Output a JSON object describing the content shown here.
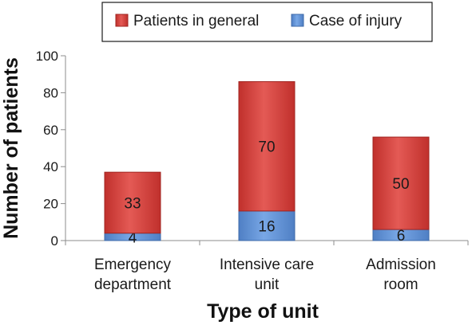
{
  "chart_data": {
    "type": "bar",
    "stacked": true,
    "categories": [
      [
        "Emergency",
        "department"
      ],
      [
        "Intensive care",
        "unit"
      ],
      [
        "Admission",
        "room"
      ]
    ],
    "series": [
      {
        "name": "Case of injury",
        "values": [
          4,
          16,
          6
        ],
        "color": "#4f7fc4",
        "highlight": "#78a7e6",
        "edge": "#3e6aa8"
      },
      {
        "name": "Patients in general",
        "values": [
          33,
          70,
          50
        ],
        "color": "#c0302c",
        "highlight": "#e45a55",
        "edge": "#a12521"
      }
    ],
    "legend_order": [
      "Patients in general",
      "Case of injury"
    ],
    "xlabel": "Type of unit",
    "ylabel": "Number of patients",
    "ylim": [
      0,
      100
    ],
    "yticks": [
      0,
      20,
      40,
      60,
      80,
      100
    ],
    "grid": false,
    "legend_position": "top"
  }
}
